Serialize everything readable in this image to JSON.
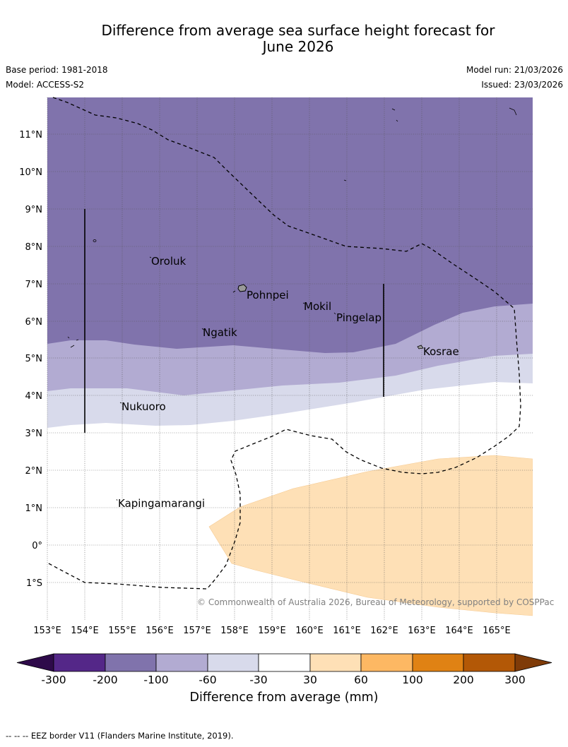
{
  "title_line1": "Difference from average sea surface height forecast for",
  "title_line2": "June 2026",
  "base_period": "Base period: 1981-2018",
  "model": "Model: ACCESS-S2",
  "model_run": "Model run: 21/03/2026",
  "issued": "Issued: 23/03/2026",
  "lat_labels": [
    "11°N",
    "10°N",
    "9°N",
    "8°N",
    "7°N",
    "6°N",
    "5°N",
    "4°N",
    "3°N",
    "2°N",
    "1°N",
    "0°",
    "1°S"
  ],
  "lon_labels": [
    "153°E",
    "154°E",
    "155°E",
    "156°E",
    "157°E",
    "158°E",
    "159°E",
    "160°E",
    "161°E",
    "162°E",
    "163°E",
    "164°E",
    "165°E"
  ],
  "places": [
    {
      "name": "Oroluk"
    },
    {
      "name": "Pohnpei"
    },
    {
      "name": "Mokil"
    },
    {
      "name": "Pingelap"
    },
    {
      "name": "Ngatik"
    },
    {
      "name": "Kosrae"
    },
    {
      "name": "Nukuoro"
    },
    {
      "name": "Kapingamarangi"
    }
  ],
  "copyright": "© Commonwealth of Australia 2026, Bureau of Meteorology, supported by COSPPac",
  "colorbar": {
    "title": "Difference from average (mm)",
    "labels": [
      "-300",
      "-200",
      "-100",
      "-60",
      "-30",
      "30",
      "60",
      "100",
      "200",
      "300"
    ],
    "colors": [
      "#2e0a4a",
      "#542788",
      "#8073ac",
      "#b2abd2",
      "#d8daeb",
      "#ffffff",
      "#fee0b6",
      "#fdb863",
      "#e08214",
      "#b35806",
      "#7f3b08"
    ]
  },
  "legend_footer": "--  --  -- EEZ border V11 (Flanders Marine Institute, 2019).",
  "map_colors": {
    "band_lt_neg100": "#8073ac",
    "band_neg100_neg60": "#b2abd2",
    "band_neg60_neg30": "#d8daeb",
    "band_neutral": "#ffffff",
    "band_30_60": "#fee0b6"
  }
}
